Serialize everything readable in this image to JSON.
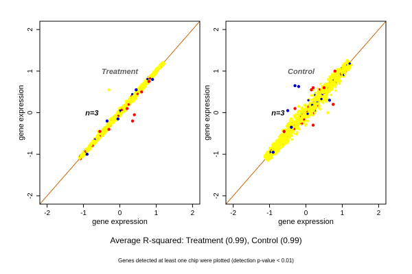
{
  "figure": {
    "caption": "Average R-squared: Treatment (0.99), Control (0.99)",
    "footnote": "Genes detected at least one chip were plotted (detection p-value < 0.01)"
  },
  "colors": {
    "points_main": "#ffff00",
    "points_red": "#ff0000",
    "points_blue": "#0000cc",
    "diagonal": "#c86400",
    "annotation_gray": "#606060",
    "annotation_black": "#000000"
  },
  "chart_data": [
    {
      "type": "scatter",
      "title": "",
      "xlabel": "gene expression",
      "ylabel": "gene expression",
      "xlim": [
        -2.2,
        2.2
      ],
      "ylim": [
        -2.2,
        2.2
      ],
      "xticks": [
        -2,
        -1,
        0,
        1,
        2
      ],
      "yticks": [
        -2,
        -1,
        0,
        1,
        2
      ],
      "grid": false,
      "reference_line": {
        "slope": 1,
        "intercept": 0
      },
      "annotations": [
        {
          "text": "Treatment",
          "x": -0.5,
          "y": 1.0,
          "style": "bold-italic-gray"
        },
        {
          "text": "n=3",
          "x": -0.95,
          "y": 0.0,
          "style": "bold-italic-black"
        }
      ],
      "cloud": {
        "x_range": [
          -1.1,
          1.2
        ],
        "spread": 0.04
      },
      "series": [
        {
          "color": "yellow",
          "points": [
            [
              -1.05,
              -1.0
            ],
            [
              -0.9,
              -0.92
            ],
            [
              -0.7,
              -0.68
            ],
            [
              -0.5,
              -0.52
            ],
            [
              -0.3,
              -0.27
            ],
            [
              -0.1,
              -0.12
            ],
            [
              0.1,
              0.12
            ],
            [
              0.3,
              0.28
            ],
            [
              0.5,
              0.52
            ],
            [
              0.7,
              0.71
            ],
            [
              0.9,
              0.92
            ],
            [
              1.1,
              1.12
            ],
            [
              -0.3,
              0.55
            ],
            [
              -0.6,
              -0.45
            ],
            [
              0.15,
              0.05
            ]
          ]
        },
        {
          "color": "red",
          "points": [
            [
              -0.55,
              -0.45
            ],
            [
              0.2,
              0.1
            ],
            [
              0.35,
              -0.2
            ],
            [
              0.6,
              0.5
            ],
            [
              -0.3,
              -0.4
            ],
            [
              0.4,
              -0.05
            ],
            [
              0.8,
              0.75
            ]
          ]
        },
        {
          "color": "blue",
          "points": [
            [
              -0.9,
              -1.0
            ],
            [
              -0.35,
              -0.2
            ],
            [
              -0.05,
              -0.15
            ],
            [
              0.45,
              0.55
            ],
            [
              0.9,
              0.8
            ]
          ]
        }
      ]
    },
    {
      "type": "scatter",
      "title": "",
      "xlabel": "gene expression",
      "ylabel": "gene expression",
      "xlim": [
        -2.2,
        2.2
      ],
      "ylim": [
        -2.2,
        2.2
      ],
      "xticks": [
        -2,
        -1,
        0,
        1,
        2
      ],
      "yticks": [
        -2,
        -1,
        0,
        1,
        2
      ],
      "grid": false,
      "reference_line": {
        "slope": 1,
        "intercept": 0
      },
      "annotations": [
        {
          "text": "Control",
          "x": -0.5,
          "y": 1.0,
          "style": "bold-italic-gray"
        },
        {
          "text": "n=3",
          "x": -0.95,
          "y": 0.0,
          "style": "bold-italic-black"
        }
      ],
      "cloud": {
        "x_range": [
          -1.1,
          1.2
        ],
        "spread": 0.11
      },
      "series": [
        {
          "color": "yellow",
          "points": [
            [
              -1.05,
              -0.95
            ],
            [
              -0.9,
              -0.9
            ],
            [
              -0.7,
              -0.65
            ],
            [
              -0.5,
              -0.5
            ],
            [
              -0.3,
              -0.25
            ],
            [
              -0.1,
              -0.1
            ],
            [
              0.1,
              0.1
            ],
            [
              0.3,
              0.3
            ],
            [
              0.5,
              0.5
            ],
            [
              0.7,
              0.68
            ],
            [
              0.9,
              0.9
            ],
            [
              1.1,
              1.1
            ],
            [
              0.2,
              0.55
            ],
            [
              0.6,
              0.0
            ],
            [
              -0.2,
              0.15
            ]
          ]
        },
        {
          "color": "red",
          "points": [
            [
              0.2,
              0.6
            ],
            [
              0.15,
              0.55
            ],
            [
              0.75,
              0.2
            ],
            [
              0.2,
              -0.3
            ],
            [
              -0.6,
              -0.45
            ],
            [
              0.8,
              1.0
            ],
            [
              -0.3,
              0.1
            ],
            [
              0.5,
              0.6
            ]
          ]
        },
        {
          "color": "blue",
          "points": [
            [
              -0.2,
              0.63
            ],
            [
              -0.3,
              0.65
            ],
            [
              -0.9,
              -0.95
            ],
            [
              -0.5,
              0.05
            ],
            [
              0.65,
              0.3
            ],
            [
              -0.4,
              -0.35
            ]
          ]
        }
      ]
    }
  ]
}
